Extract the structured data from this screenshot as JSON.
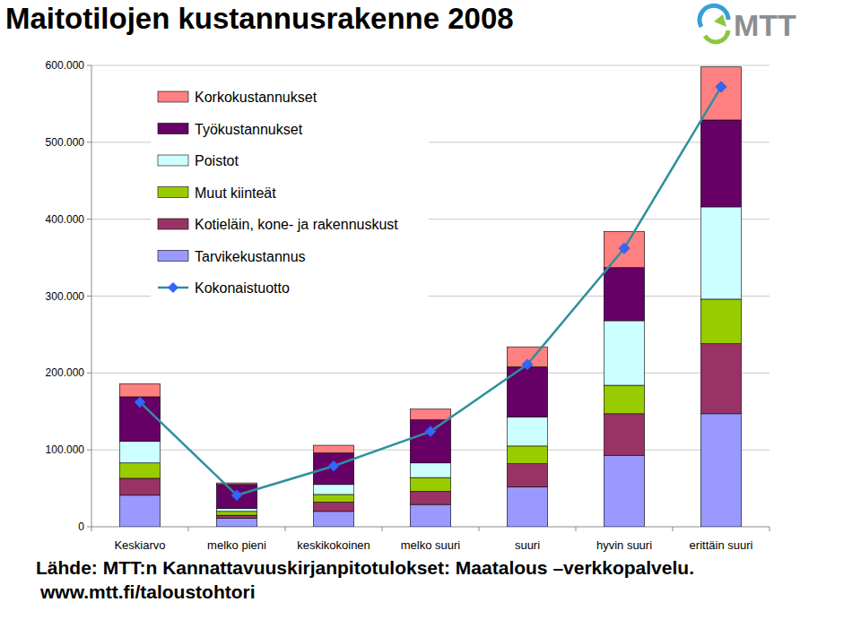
{
  "chart_data": {
    "type": "bar",
    "title": "Maitotilojen kustannusrakenne 2008",
    "logo": "MTT",
    "source": [
      "Lähde: MTT:n Kannattavuuskirjanpitotulokset: Maatalous –verkkopalvelu.",
      "www.mtt.fi/taloustohtori"
    ],
    "categories": [
      "Keskiarvo",
      "melko pieni",
      "keskikokoinen",
      "melko suuri",
      "suuri",
      "hyvin suuri",
      "erittäin suuri"
    ],
    "stacked": true,
    "grid": true,
    "legend": "upper left",
    "ylim": [
      0,
      600000
    ],
    "yticks": [
      0,
      {
        "value": 100000,
        "label": "100.000"
      },
      {
        "value": 200000,
        "label": "200.000"
      },
      {
        "value": 300000,
        "label": "300.000"
      },
      {
        "value": 400000,
        "label": "400.000"
      },
      {
        "value": 500000,
        "label": "500.000"
      },
      {
        "value": 600000,
        "label": "600.000"
      }
    ],
    "series": [
      {
        "name": "Tarvikekustannus",
        "color": "#9999ff",
        "values": [
          41000,
          11000,
          20000,
          29000,
          52000,
          93000,
          147000
        ]
      },
      {
        "name": "Kotieläin, kone- ja rakennuskust",
        "color": "#993366",
        "values": [
          22000,
          4000,
          12000,
          17000,
          30000,
          54000,
          91000
        ]
      },
      {
        "name": "Muut kiinteät",
        "color": "#99cc00",
        "values": [
          20000,
          5000,
          10000,
          18000,
          23000,
          37000,
          58000
        ]
      },
      {
        "name": "Poistot",
        "color": "#ccffff",
        "values": [
          28000,
          4000,
          13000,
          19000,
          38000,
          84000,
          120000
        ]
      },
      {
        "name": "Työkustannukset",
        "color": "#660066",
        "values": [
          58000,
          31000,
          41000,
          56000,
          65000,
          69000,
          113000
        ]
      },
      {
        "name": "Korkokustannukset",
        "color": "#ff8080",
        "values": [
          17000,
          2000,
          10000,
          14000,
          26000,
          47000,
          69000
        ]
      },
      {
        "name": "Kokonaistuotto",
        "type": "line",
        "color": "#2f8f9d",
        "marker": "diamond",
        "values": [
          162000,
          41000,
          79000,
          124000,
          211000,
          362000,
          572000
        ]
      }
    ]
  }
}
